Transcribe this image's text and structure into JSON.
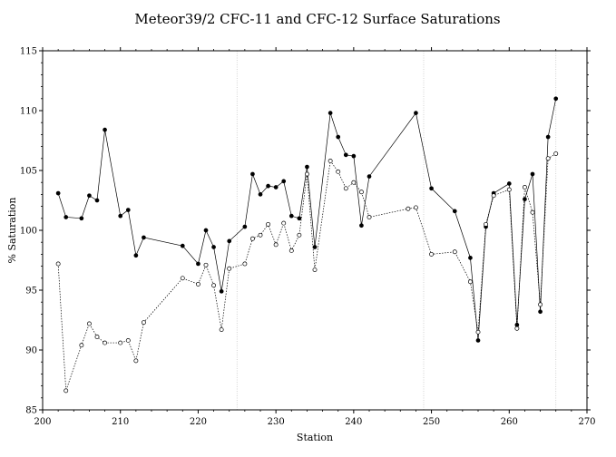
{
  "chart_data": {
    "type": "line",
    "title": "Meteor39/2 CFC-11 and CFC-12 Surface Saturations",
    "xlabel": "Station",
    "ylabel": "% Saturation",
    "xlim": [
      200,
      270
    ],
    "ylim": [
      85,
      115
    ],
    "xticks": [
      200,
      210,
      220,
      230,
      240,
      250,
      260,
      270
    ],
    "yticks": [
      85,
      90,
      95,
      100,
      105,
      110,
      115
    ],
    "grid": false,
    "reference_lines_x": [
      225,
      249,
      266
    ],
    "series": [
      {
        "marker": "filled-circle",
        "line": "solid",
        "x": [
          202,
          203,
          205,
          206,
          207,
          208,
          210,
          211,
          212,
          213,
          218,
          220,
          221,
          222,
          223,
          224,
          226,
          227,
          228,
          229,
          230,
          231,
          232,
          233,
          234,
          235,
          237,
          238,
          239,
          240,
          241,
          242,
          248,
          250,
          253,
          255,
          256,
          257,
          258,
          260,
          261,
          262,
          263,
          264,
          265,
          266
        ],
        "values": [
          103.1,
          101.1,
          101.0,
          102.9,
          102.5,
          108.4,
          101.2,
          101.7,
          97.9,
          99.4,
          98.7,
          97.2,
          100.0,
          98.6,
          94.9,
          99.1,
          100.3,
          104.7,
          103.0,
          103.7,
          103.6,
          104.1,
          101.2,
          101.0,
          105.3,
          98.6,
          109.8,
          107.8,
          106.3,
          106.2,
          100.4,
          104.5,
          109.8,
          103.5,
          101.6,
          97.7,
          90.8,
          100.3,
          103.1,
          103.9,
          92.1,
          102.6,
          104.7,
          93.2,
          107.8,
          111.0
        ]
      },
      {
        "marker": "open-circle",
        "line": "dotted",
        "x": [
          202,
          203,
          205,
          206,
          207,
          208,
          210,
          211,
          212,
          213,
          218,
          220,
          221,
          222,
          223,
          224,
          226,
          227,
          228,
          229,
          230,
          231,
          232,
          233,
          234,
          235,
          237,
          238,
          239,
          240,
          241,
          242,
          247,
          248,
          250,
          253,
          255,
          256,
          257,
          258,
          260,
          261,
          262,
          263,
          264,
          265,
          266
        ],
        "values": [
          97.2,
          86.6,
          90.4,
          92.2,
          91.1,
          90.6,
          90.6,
          90.8,
          89.1,
          92.3,
          96.0,
          95.5,
          97.1,
          95.4,
          91.7,
          96.8,
          97.2,
          99.3,
          99.6,
          100.5,
          98.8,
          100.6,
          98.3,
          99.6,
          104.7,
          96.7,
          105.8,
          104.9,
          103.5,
          104.0,
          103.2,
          101.1,
          101.8,
          101.9,
          98.0,
          98.2,
          95.7,
          91.5,
          100.5,
          102.9,
          103.4,
          91.8,
          103.6,
          101.5,
          93.8,
          106.0,
          106.4
        ]
      }
    ]
  }
}
